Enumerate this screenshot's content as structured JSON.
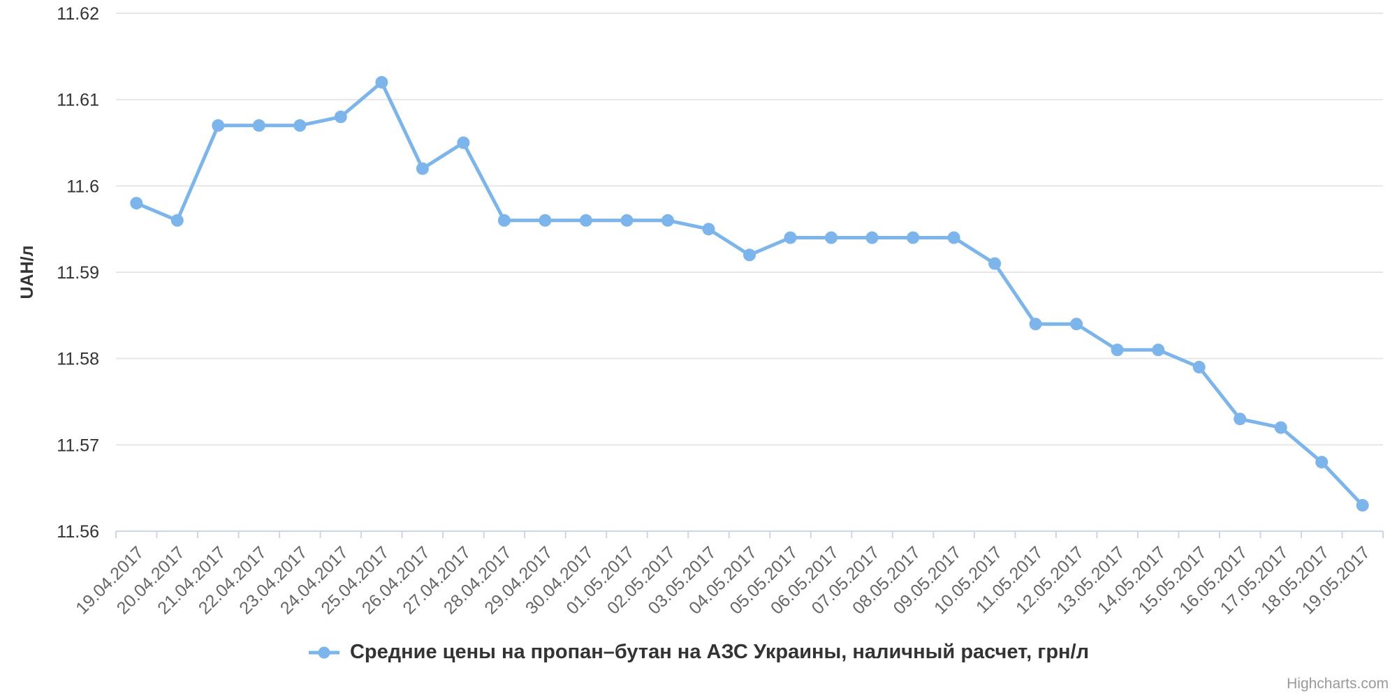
{
  "chart_data": {
    "type": "line",
    "title": "",
    "xlabel": "",
    "ylabel": "UAH/л",
    "categories": [
      "19.04.2017",
      "20.04.2017",
      "21.04.2017",
      "22.04.2017",
      "23.04.2017",
      "24.04.2017",
      "25.04.2017",
      "26.04.2017",
      "27.04.2017",
      "28.04.2017",
      "29.04.2017",
      "30.04.2017",
      "01.05.2017",
      "02.05.2017",
      "03.05.2017",
      "04.05.2017",
      "05.05.2017",
      "06.05.2017",
      "07.05.2017",
      "08.05.2017",
      "09.05.2017",
      "10.05.2017",
      "11.05.2017",
      "12.05.2017",
      "13.05.2017",
      "14.05.2017",
      "15.05.2017",
      "16.05.2017",
      "17.05.2017",
      "18.05.2017",
      "19.05.2017"
    ],
    "series": [
      {
        "name": "Средние цены на пропан–бутан на АЗС Украины, наличный расчет, грн/л",
        "values": [
          11.598,
          11.596,
          11.607,
          11.607,
          11.607,
          11.608,
          11.612,
          11.602,
          11.605,
          11.596,
          11.596,
          11.596,
          11.596,
          11.596,
          11.595,
          11.592,
          11.594,
          11.594,
          11.594,
          11.594,
          11.594,
          11.591,
          11.584,
          11.584,
          11.581,
          11.581,
          11.579,
          11.573,
          11.572,
          11.568,
          11.563
        ]
      }
    ],
    "ylim": [
      11.56,
      11.62
    ],
    "ytick_labels": [
      "11.56",
      "11.57",
      "11.58",
      "11.59",
      "11.6",
      "11.61",
      "11.62"
    ],
    "grid": true,
    "x_label_rotation": -45,
    "legend_position": "bottom-center"
  },
  "legend": {
    "label": "Средние цены на пропан–бутан на АЗС Украины, наличный расчет, грн/л"
  },
  "credits": {
    "label": "Highcharts.com"
  },
  "colors": {
    "series": "#7cb5ec",
    "gridline": "#e6e6e6",
    "axis_line": "#ccd6eb",
    "x_label": "#666666",
    "y_label": "#333333",
    "y_title": "#333333",
    "legend_text": "#333333",
    "credits_text": "#999999",
    "background": "#ffffff"
  }
}
